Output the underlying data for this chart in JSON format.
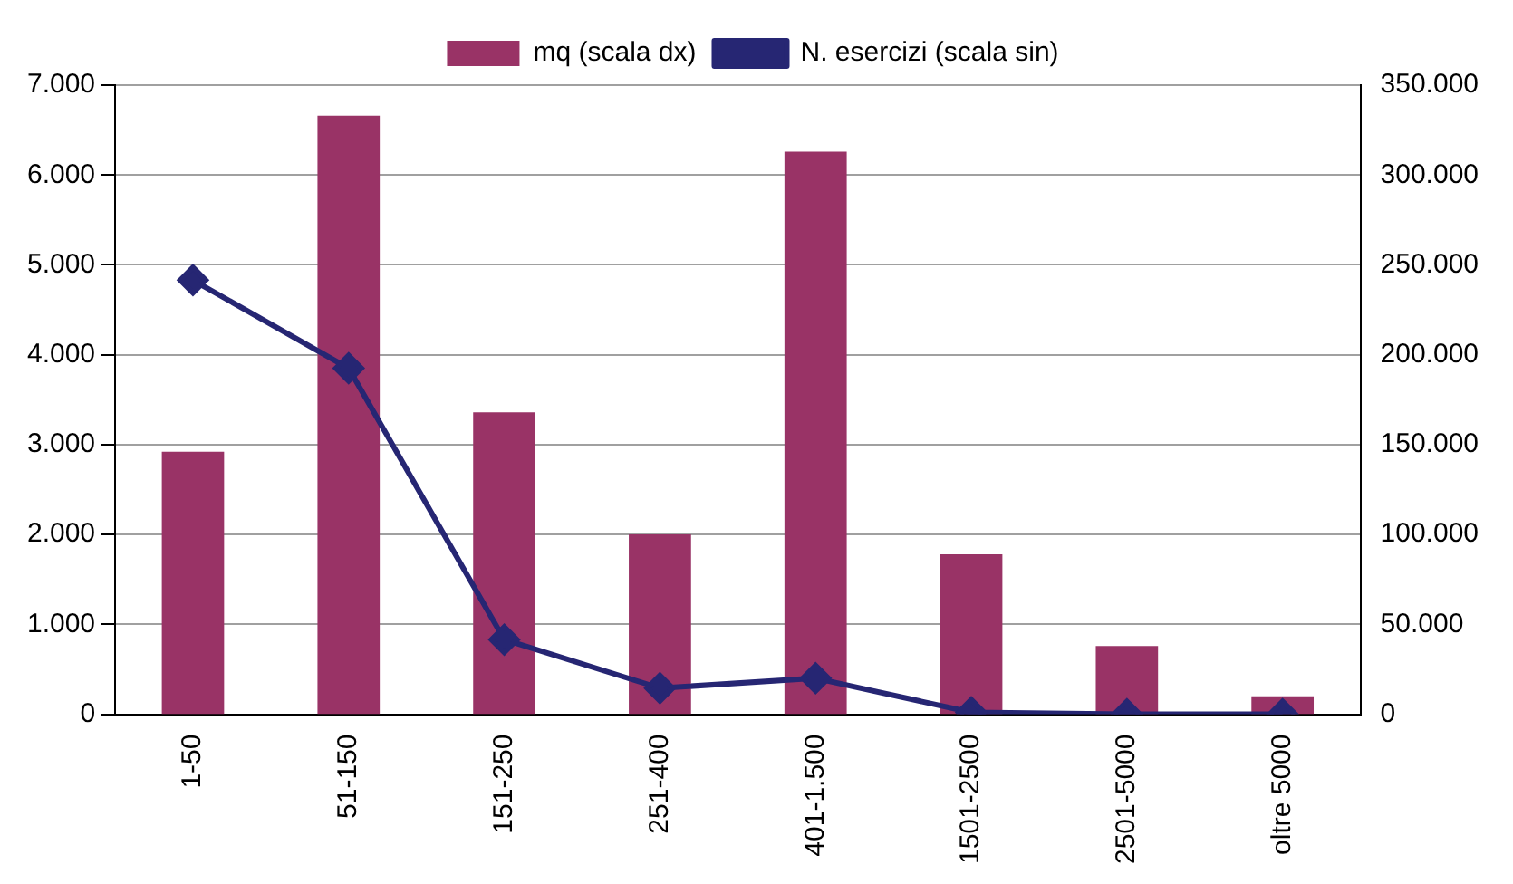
{
  "chart_data": {
    "type": "bar",
    "categories": [
      "1-50",
      "51-150",
      "151-250",
      "251-400",
      "401-1.500",
      "1501-2500",
      "2501-5000",
      "oltre 5000"
    ],
    "series": [
      {
        "name": "mq (scala dx)",
        "axis": "y2",
        "color": "#993366",
        "values": [
          146000,
          333000,
          168000,
          100000,
          313000,
          89000,
          38000,
          10000
        ]
      },
      {
        "name": "N. esercizi (scala sin)",
        "type": "line",
        "color": "#262673",
        "marker": "diamond",
        "values": [
          4830,
          3850,
          830,
          290,
          400,
          20,
          0,
          0
        ]
      }
    ],
    "ylim": [
      0,
      7000
    ],
    "yticks": [
      {
        "value": 0,
        "label": "0"
      },
      {
        "value": 1000,
        "label": "1.000"
      },
      {
        "value": 2000,
        "label": "2.000"
      },
      {
        "value": 3000,
        "label": "3.000"
      },
      {
        "value": 4000,
        "label": "4.000"
      },
      {
        "value": 5000,
        "label": "5.000"
      },
      {
        "value": 6000,
        "label": "6.000"
      },
      {
        "value": 7000,
        "label": "7.000"
      }
    ],
    "y2lim": [
      0,
      350000
    ],
    "y2ticks": [
      {
        "value": 0,
        "label": "0"
      },
      {
        "value": 50000,
        "label": "50.000"
      },
      {
        "value": 100000,
        "label": "100.000"
      },
      {
        "value": 150000,
        "label": "150.000"
      },
      {
        "value": 200000,
        "label": "200.000"
      },
      {
        "value": 250000,
        "label": "250.000"
      },
      {
        "value": 300000,
        "label": "300.000"
      },
      {
        "value": 350000,
        "label": "350.000"
      }
    ],
    "grid": "y",
    "legend": "top"
  }
}
